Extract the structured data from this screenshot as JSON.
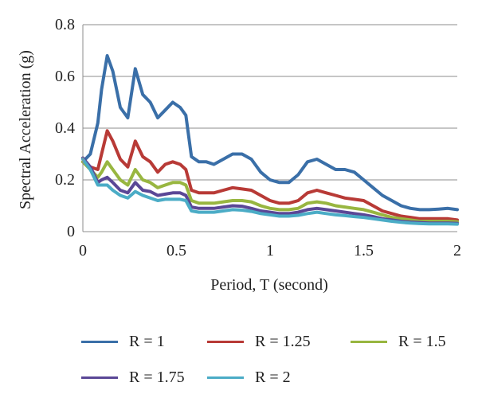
{
  "chart_data": {
    "type": "line",
    "xlabel": "Period, T (second)",
    "ylabel": "Spectral Acceleration (g)",
    "xlim": [
      0,
      2
    ],
    "ylim": [
      0,
      0.8
    ],
    "x_ticks": [
      "0",
      "0.5",
      "1",
      "1.5",
      "2"
    ],
    "x_tick_values": [
      0,
      0.5,
      1,
      1.5,
      2
    ],
    "y_ticks": [
      "0",
      "0.2",
      "0.4",
      "0.6",
      "0.8"
    ],
    "y_tick_values": [
      0,
      0.2,
      0.4,
      0.6,
      0.8
    ],
    "grid": "horizontal",
    "legend_position": "bottom",
    "x": [
      0,
      0.04,
      0.08,
      0.1,
      0.13,
      0.16,
      0.2,
      0.24,
      0.28,
      0.32,
      0.36,
      0.4,
      0.44,
      0.48,
      0.52,
      0.55,
      0.58,
      0.62,
      0.66,
      0.7,
      0.75,
      0.8,
      0.85,
      0.9,
      0.95,
      1.0,
      1.05,
      1.1,
      1.15,
      1.2,
      1.25,
      1.3,
      1.35,
      1.4,
      1.45,
      1.5,
      1.55,
      1.6,
      1.65,
      1.7,
      1.75,
      1.8,
      1.85,
      1.9,
      1.95,
      2.0
    ],
    "series": [
      {
        "name": "R = 1",
        "color": "#3A6FA8",
        "values": [
          0.27,
          0.3,
          0.42,
          0.55,
          0.68,
          0.62,
          0.48,
          0.44,
          0.63,
          0.53,
          0.5,
          0.44,
          0.47,
          0.5,
          0.48,
          0.45,
          0.29,
          0.27,
          0.27,
          0.26,
          0.28,
          0.3,
          0.3,
          0.28,
          0.23,
          0.2,
          0.19,
          0.19,
          0.22,
          0.27,
          0.28,
          0.26,
          0.24,
          0.24,
          0.23,
          0.2,
          0.17,
          0.14,
          0.12,
          0.1,
          0.09,
          0.085,
          0.085,
          0.087,
          0.09,
          0.085
        ]
      },
      {
        "name": "R = 1.25",
        "color": "#B83A36",
        "values": [
          0.27,
          0.25,
          0.24,
          0.3,
          0.39,
          0.35,
          0.28,
          0.25,
          0.35,
          0.29,
          0.27,
          0.23,
          0.26,
          0.27,
          0.26,
          0.24,
          0.16,
          0.15,
          0.15,
          0.15,
          0.16,
          0.17,
          0.165,
          0.16,
          0.14,
          0.12,
          0.11,
          0.11,
          0.12,
          0.15,
          0.16,
          0.15,
          0.14,
          0.13,
          0.125,
          0.12,
          0.1,
          0.08,
          0.07,
          0.06,
          0.055,
          0.05,
          0.05,
          0.05,
          0.05,
          0.045
        ]
      },
      {
        "name": "R = 1.5",
        "color": "#98B640",
        "values": [
          0.27,
          0.24,
          0.21,
          0.23,
          0.27,
          0.24,
          0.2,
          0.18,
          0.24,
          0.2,
          0.19,
          0.17,
          0.18,
          0.19,
          0.19,
          0.18,
          0.12,
          0.11,
          0.11,
          0.11,
          0.115,
          0.12,
          0.12,
          0.115,
          0.1,
          0.09,
          0.085,
          0.085,
          0.09,
          0.11,
          0.115,
          0.11,
          0.1,
          0.095,
          0.09,
          0.085,
          0.075,
          0.065,
          0.055,
          0.05,
          0.045,
          0.04,
          0.04,
          0.04,
          0.04,
          0.038
        ]
      },
      {
        "name": "R = 1.75",
        "color": "#5A4796",
        "values": [
          0.285,
          0.25,
          0.19,
          0.2,
          0.21,
          0.19,
          0.16,
          0.15,
          0.19,
          0.16,
          0.155,
          0.14,
          0.145,
          0.15,
          0.15,
          0.14,
          0.095,
          0.09,
          0.09,
          0.09,
          0.095,
          0.1,
          0.098,
          0.09,
          0.08,
          0.075,
          0.07,
          0.07,
          0.075,
          0.085,
          0.09,
          0.085,
          0.08,
          0.075,
          0.07,
          0.065,
          0.058,
          0.05,
          0.045,
          0.04,
          0.037,
          0.035,
          0.033,
          0.033,
          0.033,
          0.032
        ]
      },
      {
        "name": "R = 2",
        "color": "#4BACC6",
        "values": [
          0.28,
          0.24,
          0.18,
          0.18,
          0.18,
          0.16,
          0.14,
          0.13,
          0.155,
          0.14,
          0.13,
          0.12,
          0.125,
          0.125,
          0.125,
          0.12,
          0.08,
          0.075,
          0.075,
          0.075,
          0.08,
          0.085,
          0.083,
          0.078,
          0.07,
          0.065,
          0.06,
          0.06,
          0.063,
          0.07,
          0.075,
          0.07,
          0.065,
          0.062,
          0.058,
          0.055,
          0.05,
          0.045,
          0.04,
          0.036,
          0.033,
          0.031,
          0.03,
          0.03,
          0.03,
          0.029
        ]
      }
    ]
  }
}
